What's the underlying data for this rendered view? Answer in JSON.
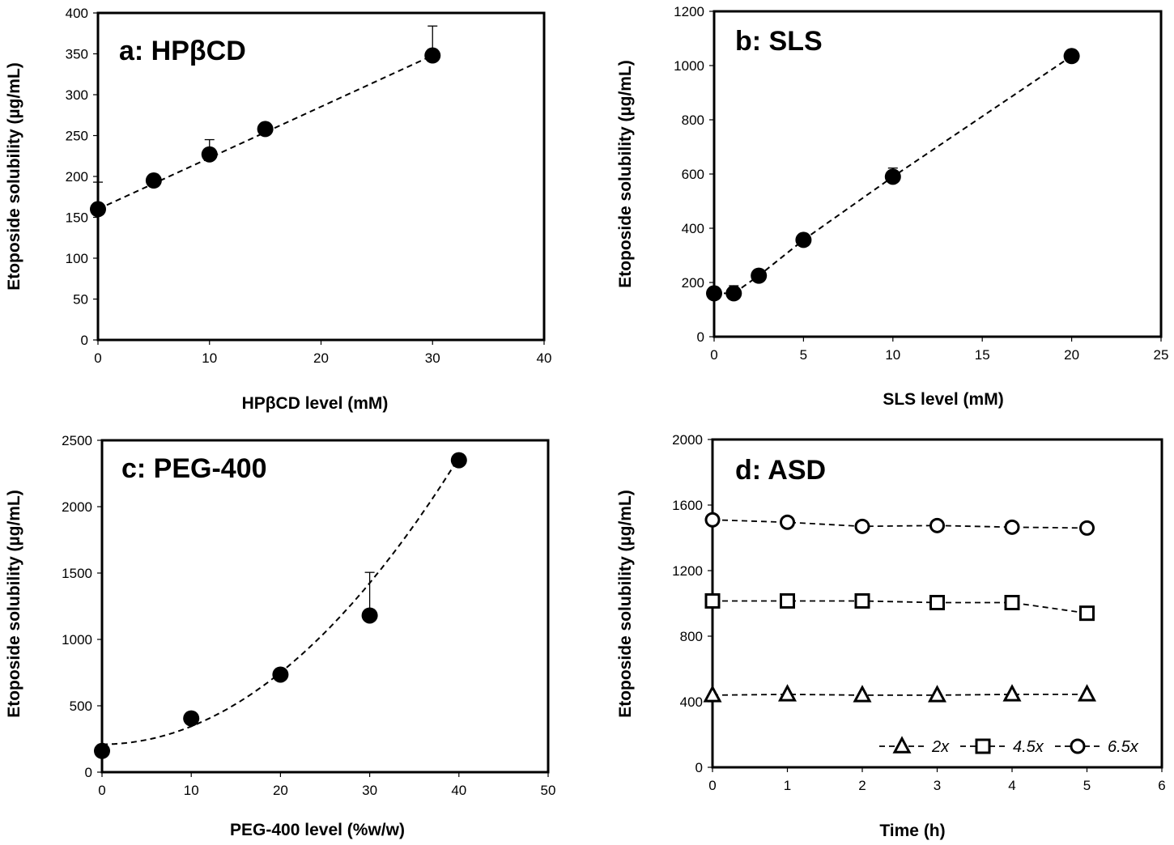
{
  "chart_data": [
    {
      "type": "scatter",
      "title": "a: HPβCD",
      "xlabel": "HPβCD  level (mM)",
      "ylabel": "Etoposide solubility (µg/mL)",
      "xlim": [
        0,
        40
      ],
      "ylim": [
        0,
        400
      ],
      "xticks": [
        0,
        10,
        20,
        30,
        40
      ],
      "yticks": [
        0,
        50,
        100,
        150,
        200,
        250,
        300,
        350,
        400
      ],
      "grid": false,
      "series": [
        {
          "marker": "filled-circle",
          "x": [
            0,
            5,
            10,
            15,
            30
          ],
          "y": [
            160,
            195,
            227,
            258,
            348
          ],
          "error_up": [
            33,
            0,
            18,
            0,
            36
          ]
        }
      ],
      "trendline": {
        "kind": "linear",
        "style": "dashed",
        "points": [
          [
            0,
            160
          ],
          [
            30,
            348
          ]
        ]
      }
    },
    {
      "type": "scatter",
      "title": "b: SLS",
      "xlabel": "SLS  level (mM)",
      "ylabel": "Etoposide solubility (µg/mL)",
      "xlim": [
        0,
        25
      ],
      "ylim": [
        0,
        1200
      ],
      "xticks": [
        0,
        5,
        10,
        15,
        20,
        25
      ],
      "yticks": [
        0,
        200,
        400,
        600,
        800,
        1000,
        1200
      ],
      "grid": false,
      "series": [
        {
          "marker": "filled-circle",
          "x": [
            0,
            1.1,
            2.5,
            5,
            10,
            20
          ],
          "y": [
            160,
            160,
            225,
            357,
            590,
            1035
          ],
          "error_up": [
            0,
            28,
            0,
            0,
            32,
            0
          ]
        }
      ],
      "trendline": {
        "kind": "polyline",
        "style": "dashed",
        "points": [
          [
            0,
            160
          ],
          [
            1.1,
            160
          ],
          [
            2.5,
            225
          ],
          [
            5,
            357
          ],
          [
            10,
            590
          ],
          [
            20,
            1035
          ]
        ]
      }
    },
    {
      "type": "scatter",
      "title": "c: PEG-400",
      "xlabel": "PEG-400  level (%w/w)",
      "ylabel": "Etoposide solubility (µg/mL)",
      "xlim": [
        0,
        50
      ],
      "ylim": [
        0,
        2500
      ],
      "xticks": [
        0,
        10,
        20,
        30,
        40,
        50
      ],
      "yticks": [
        0,
        500,
        1000,
        1500,
        2000,
        2500
      ],
      "grid": false,
      "series": [
        {
          "marker": "filled-circle",
          "x": [
            0,
            10,
            20,
            30,
            40
          ],
          "y": [
            160,
            405,
            735,
            1180,
            2350
          ],
          "error_up": [
            0,
            0,
            0,
            325,
            0
          ]
        }
      ],
      "trendline": {
        "kind": "quadratic",
        "style": "dashed",
        "coef": [
          210,
          0,
          1.35
        ],
        "x_range": [
          0,
          40
        ]
      }
    },
    {
      "type": "line",
      "title": "d: ASD",
      "xlabel": "Time (h)",
      "ylabel": "Etoposide solubility (µg/mL)",
      "xlim": [
        0,
        6
      ],
      "ylim": [
        0,
        2000
      ],
      "xticks": [
        0,
        1,
        2,
        3,
        4,
        5,
        6
      ],
      "yticks": [
        0,
        400,
        800,
        1200,
        1600,
        2000
      ],
      "grid": false,
      "legend_position": "bottom-right",
      "x": [
        0,
        1,
        2,
        3,
        4,
        5
      ],
      "series": [
        {
          "name": "2x",
          "marker": "open-triangle",
          "values": [
            440,
            445,
            440,
            440,
            445,
            445
          ]
        },
        {
          "name": "4.5x",
          "marker": "open-square",
          "values": [
            1015,
            1015,
            1015,
            1005,
            1005,
            940
          ]
        },
        {
          "name": "6.5x",
          "marker": "open-circle",
          "values": [
            1510,
            1495,
            1470,
            1475,
            1465,
            1460
          ]
        }
      ]
    }
  ]
}
